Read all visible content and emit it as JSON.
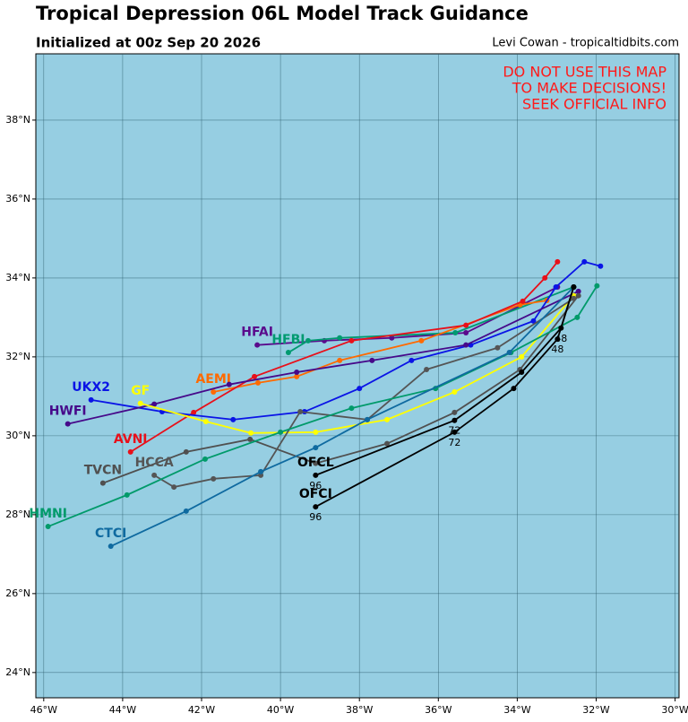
{
  "chart_data": {
    "type": "line",
    "title": "Tropical Depression 06L Model Track Guidance",
    "subtitle": "Initialized at 00z Sep 20 2026",
    "credit": "Levi Cowan - tropicaltidbits.com",
    "warning": [
      "DO NOT USE THIS MAP",
      "TO MAKE DECISIONS!",
      "SEEK OFFICIAL INFO"
    ],
    "xlim": [
      -46.2,
      -29.9
    ],
    "ylim": [
      23.36,
      39.68
    ],
    "xticks": [
      {
        "value": -46,
        "label": "46°W"
      },
      {
        "value": -44,
        "label": "44°W"
      },
      {
        "value": -42,
        "label": "42°W"
      },
      {
        "value": -40,
        "label": "40°W"
      },
      {
        "value": -38,
        "label": "38°W"
      },
      {
        "value": -36,
        "label": "36°W"
      },
      {
        "value": -34,
        "label": "34°W"
      },
      {
        "value": -32,
        "label": "32°W"
      },
      {
        "value": -30,
        "label": "30°W"
      }
    ],
    "yticks": [
      {
        "value": 24,
        "label": "24°N"
      },
      {
        "value": 26,
        "label": "26°N"
      },
      {
        "value": 28,
        "label": "28°N"
      },
      {
        "value": 30,
        "label": "30°N"
      },
      {
        "value": 32,
        "label": "32°N"
      },
      {
        "value": 34,
        "label": "34°N"
      },
      {
        "value": 36,
        "label": "36°N"
      },
      {
        "value": 38,
        "label": "38°N"
      }
    ],
    "grid": true,
    "series": [
      {
        "name": "HFAI",
        "color": "#5a0a8c",
        "x": [
          -32.98,
          -35.3,
          -37.18,
          -38.89,
          -40.59
        ],
        "values": [
          33.77,
          32.61,
          32.48,
          32.41,
          32.3
        ]
      },
      {
        "name": "HFBI",
        "color": "#009a70",
        "x": [
          -32.57,
          -35.57,
          -38.5,
          -39.3,
          -39.8
        ],
        "values": [
          33.77,
          32.61,
          32.48,
          32.41,
          32.11
        ]
      },
      {
        "name": "AEMI",
        "color": "#ff6a00",
        "x": [
          -33.25,
          -33.93,
          -36.43,
          -38.5,
          -39.59,
          -40.57,
          -41.7
        ],
        "values": [
          33.43,
          33.32,
          32.41,
          31.91,
          31.5,
          31.34,
          31.11
        ]
      },
      {
        "name": "AVNI",
        "color": "#e8101a",
        "x": [
          -32.98,
          -33.3,
          -33.86,
          -35.3,
          -38.2,
          -40.66,
          -42.2,
          -43.8
        ],
        "values": [
          34.41,
          34.0,
          33.41,
          32.8,
          32.41,
          31.5,
          30.59,
          29.59
        ]
      },
      {
        "name": "UKX2",
        "color": "#0a14e6",
        "x": [
          -31.89,
          -32.3,
          -33.02,
          -33.59,
          -35.18,
          -36.68,
          -38.0,
          -39.39,
          -41.2,
          -43.0,
          -44.8
        ],
        "values": [
          34.3,
          34.41,
          33.77,
          32.91,
          32.3,
          31.91,
          31.2,
          30.61,
          30.41,
          30.61,
          30.91
        ]
      },
      {
        "name": "HWFI",
        "color": "#46098a",
        "x": [
          -32.45,
          -35.3,
          -37.68,
          -39.59,
          -41.3,
          -43.2,
          -45.39
        ],
        "values": [
          33.66,
          32.3,
          31.91,
          31.61,
          31.3,
          30.8,
          30.3
        ]
      },
      {
        "name": "GF",
        "color": "#ffff00",
        "x": [
          -32.57,
          -33.89,
          -35.59,
          -37.3,
          -39.11,
          -40.75,
          -41.89,
          -43.55
        ],
        "values": [
          33.55,
          32.0,
          31.11,
          30.41,
          30.09,
          30.07,
          30.36,
          30.82
        ]
      },
      {
        "name": "TVCN",
        "color": "#505050",
        "x": [
          -32.45,
          -33.93,
          -35.59,
          -37.3,
          -39.11,
          -40.77,
          -42.39,
          -44.5
        ],
        "values": [
          33.55,
          31.68,
          30.59,
          29.8,
          29.3,
          29.91,
          29.59,
          28.8
        ]
      },
      {
        "name": "HCCA",
        "color": "#555555",
        "x": [
          -32.57,
          -34.5,
          -36.3,
          -37.8,
          -39.5,
          -40.5,
          -41.7,
          -42.7,
          -43.2
        ],
        "values": [
          33.48,
          32.23,
          31.68,
          30.41,
          30.61,
          29.0,
          28.91,
          28.7,
          29.0
        ]
      },
      {
        "name": "HMNI",
        "color": "#009a6a",
        "x": [
          -31.98,
          -32.48,
          -34.16,
          -36.07,
          -38.2,
          -40.0,
          -41.91,
          -43.89,
          -45.89
        ],
        "values": [
          33.8,
          33.0,
          32.11,
          31.2,
          30.7,
          30.09,
          29.41,
          28.5,
          27.7
        ]
      },
      {
        "name": "CTCI",
        "color": "#0f6aa0",
        "x": [
          -32.57,
          -34.2,
          -37.8,
          -39.11,
          -40.5,
          -42.39,
          -44.3
        ],
        "values": [
          33.77,
          32.11,
          30.41,
          29.7,
          29.09,
          28.09,
          27.2
        ]
      },
      {
        "name": "OFCL",
        "color": "#000000",
        "x": [
          -32.57,
          -32.89,
          -33.89,
          -35.59,
          -39.11
        ],
        "values": [
          33.77,
          32.73,
          31.61,
          30.39,
          29.0
        ],
        "point_labels": [
          null,
          "48",
          null,
          "72",
          "96"
        ]
      },
      {
        "name": "OFCI",
        "color": "#000000",
        "x": [
          -32.57,
          -32.98,
          -34.09,
          -35.59,
          -39.11
        ],
        "values": [
          33.77,
          32.45,
          31.2,
          30.09,
          28.2
        ],
        "point_labels": [
          null,
          "48",
          null,
          "72",
          "96"
        ]
      }
    ]
  }
}
